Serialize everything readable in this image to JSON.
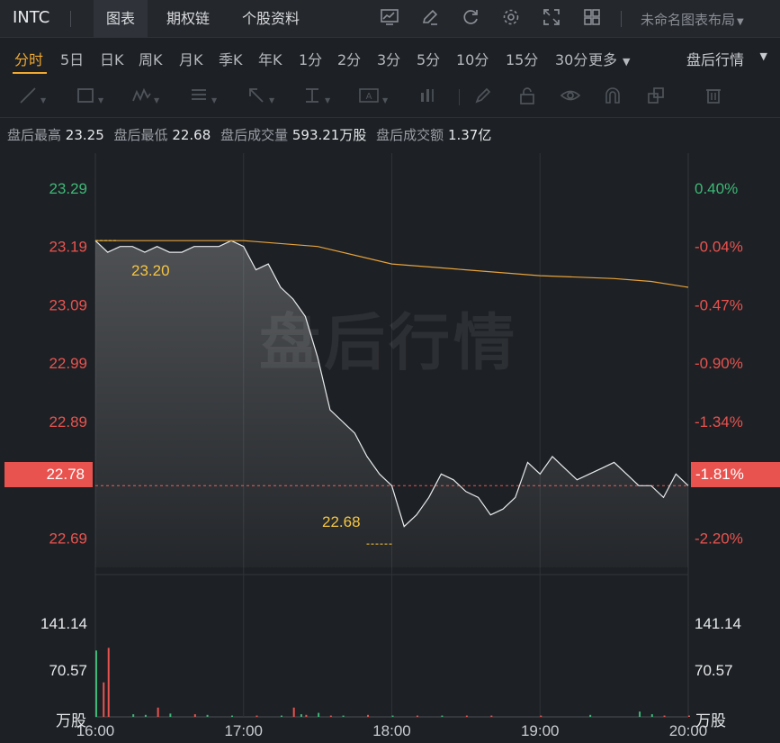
{
  "header": {
    "ticker": "INTC",
    "tabs": [
      {
        "label": "图表",
        "active": true
      },
      {
        "label": "期权链",
        "active": false
      },
      {
        "label": "个股资料",
        "active": false
      }
    ],
    "icons": [
      "chart-indicator-icon",
      "draw-pen-icon",
      "refresh-icon",
      "settings-gear-icon",
      "fullscreen-icon",
      "layout-grid-icon"
    ],
    "layout_selector": "未命名图表布局"
  },
  "periods": {
    "items": [
      "分时",
      "5日",
      "日K",
      "周K",
      "月K",
      "季K",
      "年K",
      "1分",
      "2分",
      "3分",
      "5分",
      "10分",
      "15分",
      "30分"
    ],
    "active": "分时",
    "more_label": "更多",
    "session_selector": "盘后行情"
  },
  "drawing_tools": [
    "line-tool-icon",
    "rect-tool-icon",
    "wave-tool-icon",
    "fib-tool-icon",
    "arrow-tool-icon",
    "measure-tool-icon",
    "text-tool-icon",
    "bar-pattern-tool-icon",
    "brush-icon",
    "lock-icon",
    "eye-icon",
    "magnet-icon",
    "layers-icon",
    "trash-icon"
  ],
  "stats": {
    "high_label": "盘后最高",
    "high_value": "23.25",
    "low_label": "盘后最低",
    "low_value": "22.68",
    "volume_label": "盘后成交量",
    "volume_value": "593.21万股",
    "turnover_label": "盘后成交额",
    "turnover_value": "1.37亿"
  },
  "watermark": "盘后行情",
  "colors": {
    "up": "#e9534f",
    "down": "#3db877",
    "avg_line": "#e6a23c",
    "highlight_label": "#f5c542",
    "accent": "#f0a830"
  },
  "current_price": {
    "value": "22.78",
    "change": "-1.81%"
  },
  "chart_data": [
    {
      "type": "line",
      "title": "",
      "x_ticks": [
        "16:00",
        "17:00",
        "18:00",
        "19:00",
        "20:00"
      ],
      "y_ticks_left": [
        "23.29",
        "23.19",
        "23.09",
        "22.99",
        "22.89",
        "22.69"
      ],
      "y_ticks_right": [
        "0.40%",
        "-0.04%",
        "-0.47%",
        "-0.90%",
        "-1.34%",
        "-2.20%"
      ],
      "ylim": [
        22.64,
        23.35
      ],
      "reference_price": 23.2,
      "annotations": [
        {
          "text": "23.20",
          "x": "16:10",
          "y": 23.2
        },
        {
          "text": "22.68",
          "x": "18:00",
          "y": 22.68
        }
      ],
      "series": [
        {
          "x": [
            "16:00",
            "16:05",
            "16:10",
            "16:15",
            "16:20",
            "16:25",
            "16:30",
            "16:35",
            "16:40",
            "16:45",
            "16:50",
            "16:55",
            "17:00",
            "17:05",
            "17:10",
            "17:15",
            "17:20",
            "17:25",
            "17:30",
            "17:35",
            "17:40",
            "17:45",
            "17:50",
            "17:55",
            "18:00",
            "18:05",
            "18:10",
            "18:15",
            "18:20",
            "18:25",
            "18:30",
            "18:35",
            "18:40",
            "18:45",
            "18:50",
            "18:55",
            "19:00",
            "19:05",
            "19:10",
            "19:15",
            "19:20",
            "19:25",
            "19:30",
            "19:35",
            "19:40",
            "19:45",
            "19:50",
            "19:55",
            "20:00"
          ],
          "values": [
            23.2,
            23.18,
            23.19,
            23.19,
            23.18,
            23.19,
            23.18,
            23.18,
            23.19,
            23.19,
            23.19,
            23.2,
            23.19,
            23.15,
            23.16,
            23.12,
            23.1,
            23.07,
            23.0,
            22.91,
            22.89,
            22.87,
            22.83,
            22.8,
            22.78,
            22.71,
            22.73,
            22.76,
            22.8,
            22.79,
            22.77,
            22.76,
            22.73,
            22.74,
            22.76,
            22.82,
            22.8,
            22.83,
            22.81,
            22.79,
            22.8,
            22.81,
            22.82,
            22.8,
            22.78,
            22.78,
            22.76,
            22.8,
            22.78
          ]
        },
        {
          "x": [
            "16:00",
            "16:30",
            "17:00",
            "17:30",
            "18:00",
            "18:30",
            "19:00",
            "19:30",
            "19:45",
            "20:00"
          ],
          "values": [
            23.2,
            23.2,
            23.2,
            23.19,
            23.16,
            23.15,
            23.14,
            23.135,
            23.13,
            23.12
          ]
        }
      ]
    },
    {
      "type": "bar",
      "title": "",
      "ylabel": "万股",
      "y_ticks": [
        "141.14",
        "70.57"
      ],
      "ylim": [
        0,
        211.71
      ],
      "x_ticks": [
        "16:00",
        "17:00",
        "18:00",
        "19:00",
        "20:00"
      ],
      "categories": [
        "16:00",
        "16:03",
        "16:05",
        "16:15",
        "16:20",
        "16:25",
        "16:30",
        "16:40",
        "16:45",
        "16:55",
        "17:05",
        "17:15",
        "17:20",
        "17:23",
        "17:25",
        "17:30",
        "17:35",
        "17:40",
        "17:50",
        "18:00",
        "18:10",
        "18:20",
        "18:30",
        "18:40",
        "19:00",
        "19:20",
        "19:40",
        "19:45",
        "19:50",
        "20:00"
      ],
      "series": [
        {
          "name": "",
          "direction": [
            "down",
            "up",
            "up",
            "down",
            "down",
            "up",
            "down",
            "up",
            "down",
            "down",
            "up",
            "down",
            "up",
            "down",
            "up",
            "down",
            "up",
            "down",
            "up",
            "down",
            "up",
            "down",
            "up",
            "up",
            "up",
            "down",
            "down",
            "down",
            "up",
            "up"
          ],
          "values": [
            100,
            52,
            104,
            4,
            3,
            14,
            5,
            4,
            3,
            2,
            2,
            2,
            14,
            4,
            3,
            6,
            2,
            2,
            3,
            2,
            2,
            2,
            2,
            2,
            2,
            3,
            8,
            4,
            2,
            2
          ]
        }
      ]
    }
  ]
}
